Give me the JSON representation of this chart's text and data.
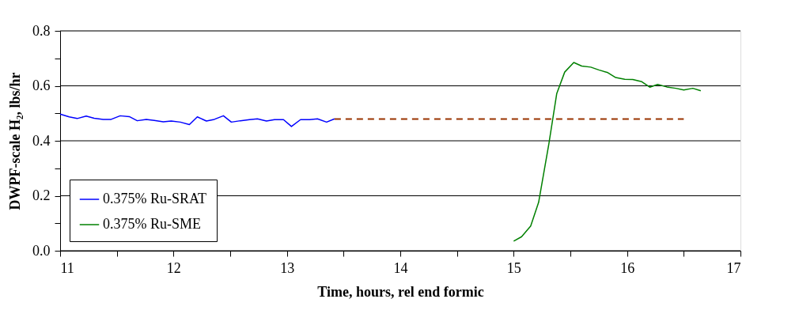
{
  "chart_data": {
    "type": "line",
    "xlabel": "Time, hours, rel end formic",
    "ylabel": "DWPF-scale H₂, lbs/hr",
    "xlim": [
      11,
      17
    ],
    "xticks": [
      11,
      {
        "value": 11.5,
        "label": null
      },
      12,
      {
        "value": 12.5,
        "label": null
      },
      13,
      {
        "value": 13.5,
        "label": null
      },
      14,
      {
        "value": 14.5,
        "label": null
      },
      15,
      {
        "value": 15.5,
        "label": null
      },
      16,
      {
        "value": 16.5,
        "label": null
      },
      17
    ],
    "ylim": [
      0,
      0.8
    ],
    "yticks": [
      {
        "value": 0,
        "label": "0.0"
      },
      {
        "value": 0.1,
        "label": null
      },
      0.2,
      {
        "value": 0.3,
        "label": null
      },
      0.4,
      {
        "value": 0.5,
        "label": null
      },
      0.6,
      {
        "value": 0.7,
        "label": null
      },
      0.8
    ],
    "grid": "y",
    "legend": "bottom left",
    "marker": "none",
    "series": [
      {
        "name": "0.375% Ru-SRAT",
        "color": "#0000ff",
        "x": [
          11.0,
          11.08,
          11.15,
          11.23,
          11.3,
          11.38,
          11.45,
          11.53,
          11.61,
          11.68,
          11.76,
          11.83,
          11.91,
          11.98,
          12.06,
          12.14,
          12.21,
          12.29,
          12.36,
          12.44,
          12.51,
          12.59,
          12.67,
          12.74,
          12.82,
          12.89,
          12.97,
          13.04,
          13.12,
          13.2,
          13.27,
          13.35,
          13.42
        ],
        "values": [
          0.497,
          0.487,
          0.481,
          0.49,
          0.482,
          0.478,
          0.478,
          0.491,
          0.488,
          0.473,
          0.478,
          0.474,
          0.469,
          0.472,
          0.468,
          0.459,
          0.487,
          0.472,
          0.478,
          0.491,
          0.468,
          0.473,
          0.477,
          0.48,
          0.472,
          0.477,
          0.477,
          0.452,
          0.477,
          0.477,
          0.48,
          0.468,
          0.48
        ]
      },
      {
        "name": "0.375% Ru-SME",
        "color": "#008000",
        "x": [
          15.0,
          15.07,
          15.15,
          15.22,
          15.31,
          15.38,
          15.45,
          15.53,
          15.6,
          15.68,
          15.75,
          15.83,
          15.9,
          15.98,
          16.05,
          16.13,
          16.2,
          16.27,
          16.35,
          16.43,
          16.5,
          16.58,
          16.65
        ],
        "values": [
          0.035,
          0.051,
          0.09,
          0.176,
          0.388,
          0.572,
          0.65,
          0.685,
          0.672,
          0.668,
          0.658,
          0.648,
          0.63,
          0.624,
          0.623,
          0.615,
          0.595,
          0.605,
          0.596,
          0.591,
          0.585,
          0.591,
          0.582
        ]
      },
      {
        "color": "#993300",
        "line_style": "dashed",
        "x": [
          13.42,
          16.5
        ],
        "values": [
          0.479,
          0.479
        ]
      }
    ]
  }
}
